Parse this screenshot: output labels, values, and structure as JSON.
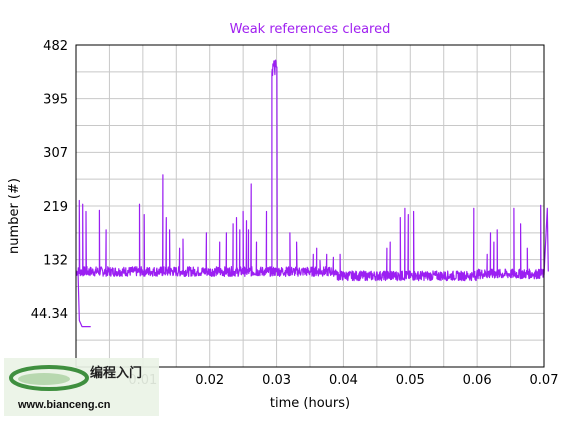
{
  "chart_data": {
    "type": "line",
    "title": "Weak references cleared",
    "xlabel": "time (hours)",
    "ylabel": "number (#)",
    "xlim": [
      0.0,
      0.07
    ],
    "ylim": [
      -44,
      482
    ],
    "x_ticks": [
      "0.01",
      "0.02",
      "0.03",
      "0.04",
      "0.05",
      "0.06",
      "0.07"
    ],
    "x_tick_values": [
      0.01,
      0.02,
      0.03,
      0.04,
      0.05,
      0.06,
      0.07
    ],
    "y_ticks": [
      "44.34",
      "132",
      "219",
      "307",
      "395",
      "482"
    ],
    "y_tick_values": [
      44.34,
      132,
      219,
      307,
      395,
      482
    ],
    "grid": true,
    "line_color": "#9b1ff2",
    "title_color": "#a020f0",
    "series": [
      {
        "name": "",
        "baseline": 112,
        "baseline_late": 105,
        "spikes": [
          {
            "x": 0.0005,
            "y": 228
          },
          {
            "x": 0.001,
            "y": 222
          },
          {
            "x": 0.0015,
            "y": 210
          },
          {
            "x": 0.0035,
            "y": 212
          },
          {
            "x": 0.0045,
            "y": 180
          },
          {
            "x": 0.0095,
            "y": 222
          },
          {
            "x": 0.0102,
            "y": 205
          },
          {
            "x": 0.013,
            "y": 270
          },
          {
            "x": 0.0135,
            "y": 200
          },
          {
            "x": 0.014,
            "y": 180
          },
          {
            "x": 0.0155,
            "y": 150
          },
          {
            "x": 0.016,
            "y": 165
          },
          {
            "x": 0.0195,
            "y": 175
          },
          {
            "x": 0.0215,
            "y": 160
          },
          {
            "x": 0.0225,
            "y": 175
          },
          {
            "x": 0.0235,
            "y": 190
          },
          {
            "x": 0.024,
            "y": 200
          },
          {
            "x": 0.0245,
            "y": 180
          },
          {
            "x": 0.025,
            "y": 210
          },
          {
            "x": 0.0255,
            "y": 195
          },
          {
            "x": 0.0258,
            "y": 180
          },
          {
            "x": 0.0262,
            "y": 255
          },
          {
            "x": 0.027,
            "y": 160
          },
          {
            "x": 0.0285,
            "y": 210
          },
          {
            "x": 0.032,
            "y": 175
          },
          {
            "x": 0.033,
            "y": 160
          },
          {
            "x": 0.0355,
            "y": 140
          },
          {
            "x": 0.036,
            "y": 150
          },
          {
            "x": 0.0365,
            "y": 130
          },
          {
            "x": 0.0375,
            "y": 140
          },
          {
            "x": 0.0385,
            "y": 135
          },
          {
            "x": 0.0395,
            "y": 140
          },
          {
            "x": 0.0465,
            "y": 150
          },
          {
            "x": 0.047,
            "y": 160
          },
          {
            "x": 0.0485,
            "y": 200
          },
          {
            "x": 0.0492,
            "y": 215
          },
          {
            "x": 0.0497,
            "y": 205
          },
          {
            "x": 0.0505,
            "y": 210
          },
          {
            "x": 0.0595,
            "y": 200
          },
          {
            "x": 0.0595,
            "y": 215
          },
          {
            "x": 0.062,
            "y": 175
          },
          {
            "x": 0.063,
            "y": 180
          },
          {
            "x": 0.0615,
            "y": 140
          },
          {
            "x": 0.0625,
            "y": 160
          },
          {
            "x": 0.0655,
            "y": 215
          },
          {
            "x": 0.0665,
            "y": 190
          },
          {
            "x": 0.0675,
            "y": 150
          },
          {
            "x": 0.0695,
            "y": 220
          },
          {
            "x": 0.0705,
            "y": 215
          }
        ],
        "major_peak": {
          "x_start": 0.0293,
          "x_end": 0.0301,
          "y": 450
        },
        "early_drop": {
          "x_start": 0.0003,
          "x_end": 0.0022,
          "y": 22
        }
      }
    ]
  },
  "watermark": {
    "chinese": "编程入门",
    "url": "www.bianceng.cn"
  }
}
